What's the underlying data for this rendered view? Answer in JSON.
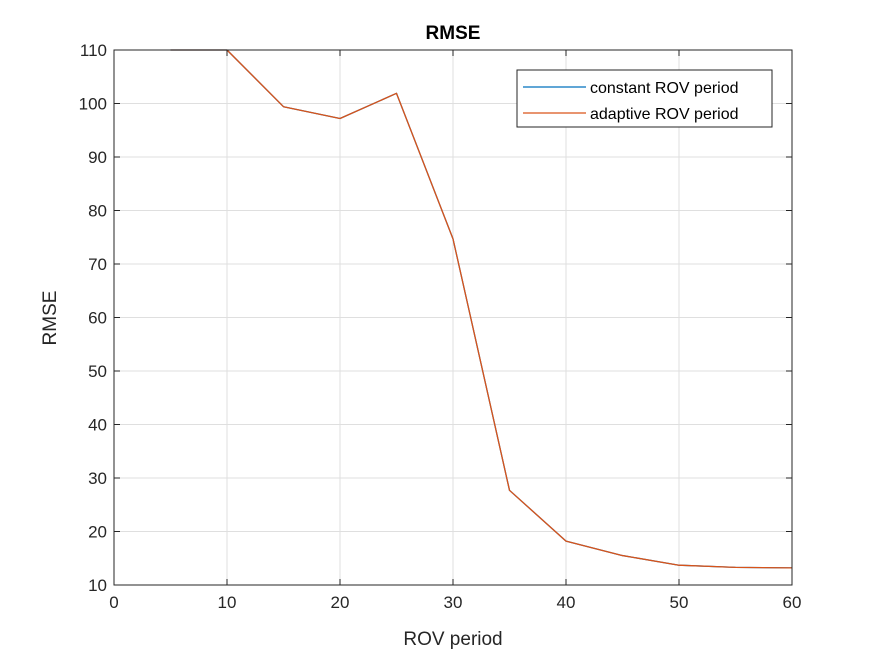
{
  "chart_data": {
    "type": "line",
    "title": "RMSE",
    "xlabel": "ROV period",
    "ylabel": "RMSE",
    "xlim": [
      0,
      60
    ],
    "ylim": [
      10,
      110
    ],
    "xticks": [
      0,
      10,
      20,
      30,
      40,
      50,
      60
    ],
    "yticks": [
      10,
      20,
      30,
      40,
      50,
      60,
      70,
      80,
      90,
      100,
      110
    ],
    "grid": true,
    "legend_position": "top-right",
    "series": [
      {
        "name": "constant ROV period",
        "color": "#0072BD",
        "x": [
          5,
          10,
          15,
          20,
          25,
          30,
          35,
          40,
          45,
          50,
          55,
          60
        ],
        "y": [
          110,
          110,
          99.4,
          97.2,
          101.9,
          74.7,
          27.7,
          18.2,
          15.5,
          13.7,
          13.3,
          13.2
        ]
      },
      {
        "name": "adaptive ROV period",
        "color": "#D95319",
        "x": [
          5,
          10,
          15,
          20,
          25,
          30,
          35,
          40,
          45,
          50,
          55,
          60
        ],
        "y": [
          110,
          110,
          99.4,
          97.2,
          101.9,
          74.7,
          27.7,
          18.2,
          15.5,
          13.7,
          13.3,
          13.2
        ]
      }
    ]
  }
}
